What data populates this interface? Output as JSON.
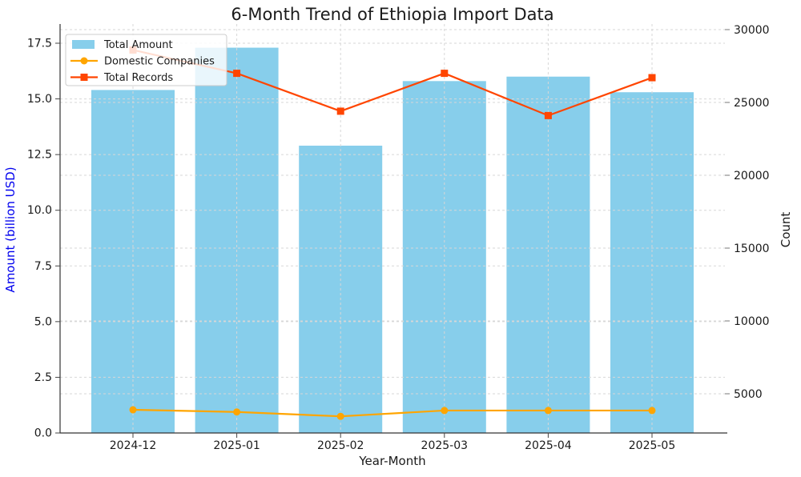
{
  "title": "6-Month Trend of Ethiopia Import Data",
  "chart_data": {
    "type": "bar",
    "subtype": "bar+line combo with dual y-axes",
    "categories": [
      "2024-12",
      "2025-01",
      "2025-02",
      "2025-03",
      "2025-04",
      "2025-05"
    ],
    "series": [
      {
        "name": "Total Amount",
        "type": "bar",
        "axis": "left",
        "color": "#87CEEB",
        "values": [
          15.4,
          17.3,
          12.9,
          15.8,
          16.0,
          15.3
        ]
      },
      {
        "name": "Domestic Companies",
        "type": "line",
        "marker": "circle",
        "axis": "right",
        "color": "#FFA500",
        "values": [
          3900,
          3750,
          3450,
          3850,
          3850,
          3850
        ]
      },
      {
        "name": "Total Records",
        "type": "line",
        "marker": "square",
        "axis": "right",
        "color": "#FF4500",
        "values": [
          28600,
          27000,
          24400,
          27000,
          24100,
          26700
        ]
      }
    ],
    "xlabel": "Year-Month",
    "left_axis": {
      "label": "Amount (billion USD)",
      "label_color": "#0000EE",
      "tick_values": [
        0,
        2.5,
        5,
        7.5,
        10,
        12.5,
        15,
        17.5
      ],
      "tick_labels": [
        "0.0",
        "2.5",
        "5.0",
        "7.5",
        "10.0",
        "12.5",
        "15.0",
        "17.5"
      ],
      "range": [
        0,
        18.4
      ]
    },
    "right_axis": {
      "label": "Count",
      "label_color": "#1a1a1a",
      "tick_values": [
        5000,
        10000,
        15000,
        20000,
        25000,
        30000
      ],
      "tick_labels": [
        "5000",
        "10000",
        "15000",
        "20000",
        "25000",
        "30000"
      ],
      "range": [
        2300,
        30400
      ]
    },
    "grid": {
      "on": true,
      "style": "dashed",
      "color": "#d7d7d7",
      "from_both_axes": true
    },
    "legend": {
      "position": "upper-left",
      "background": "rgba(255,255,255,0.82)",
      "border": "#cccccc"
    },
    "tick_color": "#1a1a1a"
  }
}
